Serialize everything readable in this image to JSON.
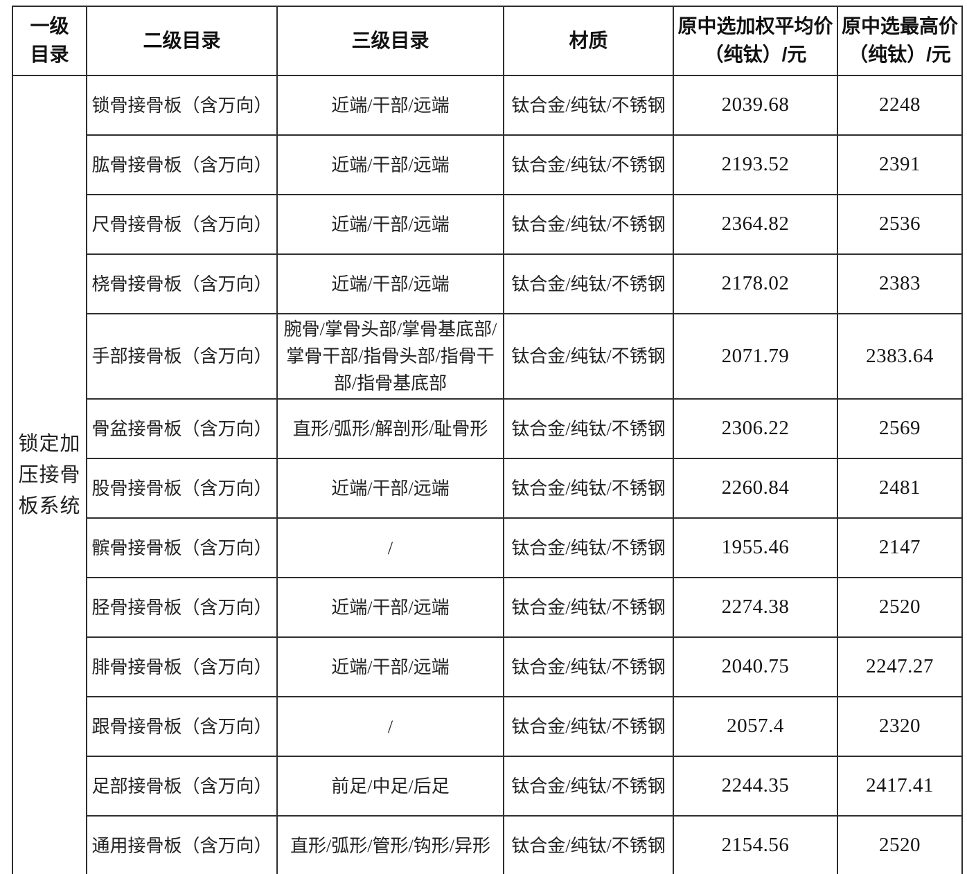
{
  "table": {
    "headers": [
      "一级\n目录",
      "二级目录",
      "三级目录",
      "材质",
      "原中选加权平均价\n（纯钛）/元",
      "原中选最高价\n（纯钛）/元"
    ],
    "category": "锁定加压接骨板系统",
    "rows": [
      {
        "l2": "锁骨接骨板（含万向）",
        "l3": "近端/干部/远端",
        "material": "钛合金/纯钛/不锈钢",
        "avg": "2039.68",
        "max": "2248"
      },
      {
        "l2": "肱骨接骨板（含万向）",
        "l3": "近端/干部/远端",
        "material": "钛合金/纯钛/不锈钢",
        "avg": "2193.52",
        "max": "2391"
      },
      {
        "l2": "尺骨接骨板（含万向）",
        "l3": "近端/干部/远端",
        "material": "钛合金/纯钛/不锈钢",
        "avg": "2364.82",
        "max": "2536"
      },
      {
        "l2": "桡骨接骨板（含万向）",
        "l3": "近端/干部/远端",
        "material": "钛合金/纯钛/不锈钢",
        "avg": "2178.02",
        "max": "2383"
      },
      {
        "l2": "手部接骨板（含万向）",
        "l3": "腕骨/掌骨头部/掌骨基底部/掌骨干部/指骨头部/指骨干部/指骨基底部",
        "material": "钛合金/纯钛/不锈钢",
        "avg": "2071.79",
        "max": "2383.64"
      },
      {
        "l2": "骨盆接骨板（含万向）",
        "l3": "直形/弧形/解剖形/耻骨形",
        "material": "钛合金/纯钛/不锈钢",
        "avg": "2306.22",
        "max": "2569"
      },
      {
        "l2": "股骨接骨板（含万向）",
        "l3": "近端/干部/远端",
        "material": "钛合金/纯钛/不锈钢",
        "avg": "2260.84",
        "max": "2481"
      },
      {
        "l2": "髌骨接骨板（含万向）",
        "l3": "/",
        "material": "钛合金/纯钛/不锈钢",
        "avg": "1955.46",
        "max": "2147"
      },
      {
        "l2": "胫骨接骨板（含万向）",
        "l3": "近端/干部/远端",
        "material": "钛合金/纯钛/不锈钢",
        "avg": "2274.38",
        "max": "2520"
      },
      {
        "l2": "腓骨接骨板（含万向）",
        "l3": "近端/干部/远端",
        "material": "钛合金/纯钛/不锈钢",
        "avg": "2040.75",
        "max": "2247.27"
      },
      {
        "l2": "跟骨接骨板（含万向）",
        "l3": "/",
        "material": "钛合金/纯钛/不锈钢",
        "avg": "2057.4",
        "max": "2320"
      },
      {
        "l2": "足部接骨板（含万向）",
        "l3": "前足/中足/后足",
        "material": "钛合金/纯钛/不锈钢",
        "avg": "2244.35",
        "max": "2417.41"
      },
      {
        "l2": "通用接骨板（含万向）",
        "l3": "直形/弧形/管形/钩形/异形",
        "material": "钛合金/纯钛/不锈钢",
        "avg": "2154.56",
        "max": "2520"
      }
    ]
  }
}
